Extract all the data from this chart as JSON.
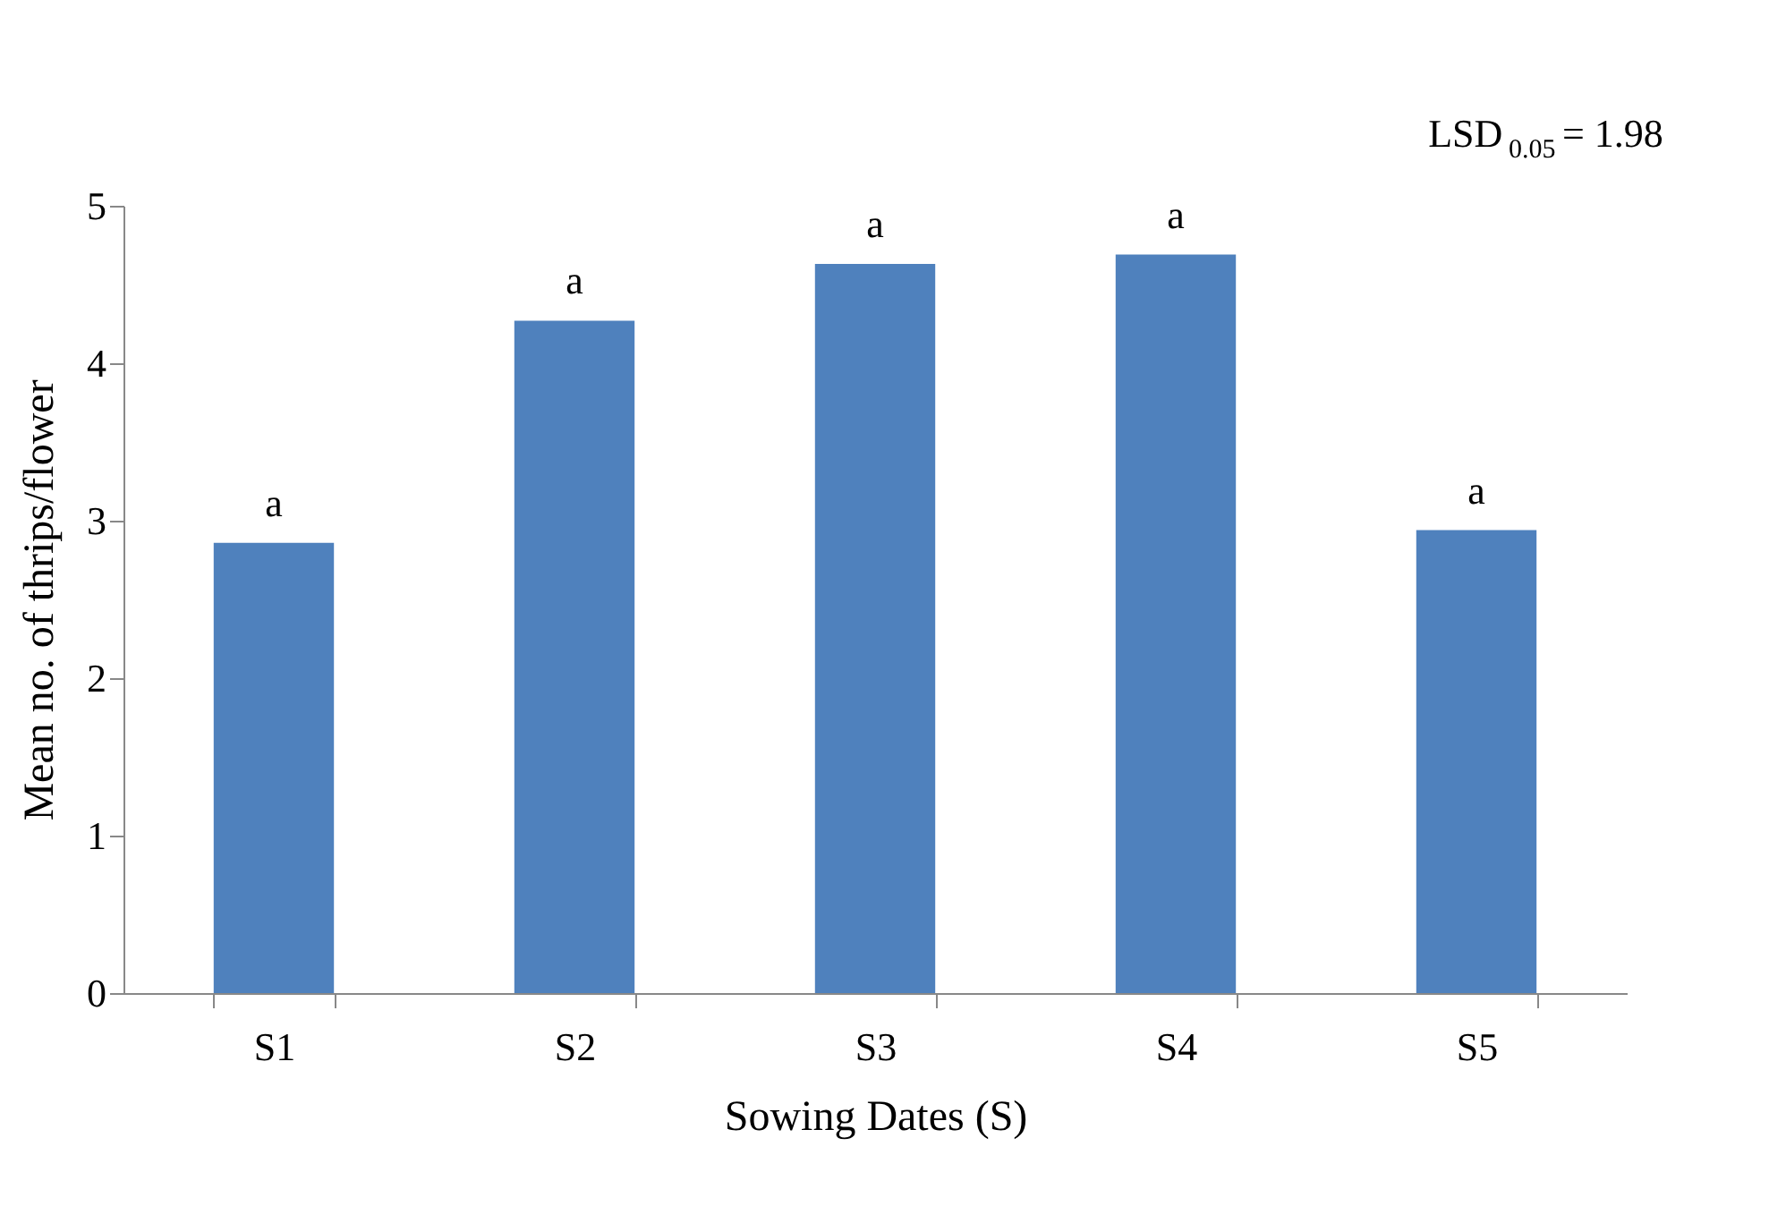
{
  "chart_data": {
    "type": "bar",
    "xlabel": "Sowing Dates (S)",
    "ylabel": "Mean no. of thrips/flower",
    "categories": [
      "S1",
      "S2",
      "S3",
      "S4",
      "S5"
    ],
    "values": [
      2.86,
      4.27,
      4.63,
      4.69,
      2.94
    ],
    "color": "#4f81bd",
    "ylim": [
      0,
      5
    ],
    "yticks": [
      0,
      1,
      2,
      3,
      4,
      5
    ],
    "grid": false,
    "annotations": [
      {
        "text": "a",
        "x": "S1",
        "y": 2.86
      },
      {
        "text": "a",
        "x": "S2",
        "y": 4.27
      },
      {
        "text": "a",
        "x": "S3",
        "y": 4.63
      },
      {
        "text": "a",
        "x": "S4",
        "y": 4.69
      },
      {
        "text": "a",
        "x": "S5",
        "y": 2.94
      },
      "LSD$_{0.05}$= 1.98"
    ]
  }
}
